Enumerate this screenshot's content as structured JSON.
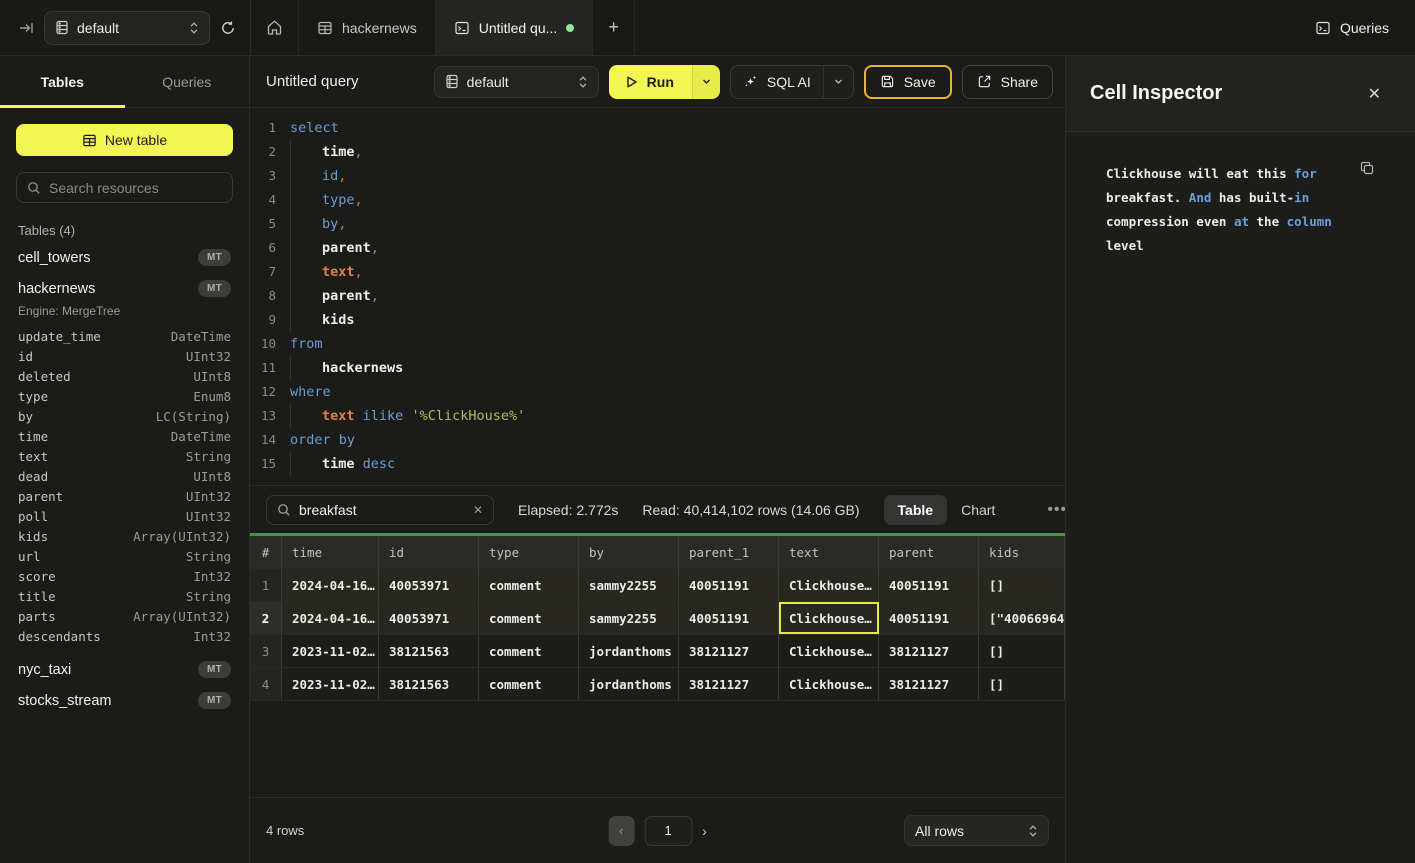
{
  "colors": {
    "accent_yellow": "#f3f553",
    "save_border_amber": "#eab330",
    "results_green": "#43953f",
    "tab_dot_green": "#8fe59b",
    "keyword_blue": "#6c9fd3",
    "comma_orange": "#d1794e",
    "string_olive": "#b4bd5e",
    "selected_cell_yellow": "#e6e94e"
  },
  "topbar": {
    "database_selector": "default",
    "tabs": [
      {
        "label": "",
        "icon": "home-icon",
        "active": false
      },
      {
        "label": "hackernews",
        "icon": "table-icon",
        "active": false
      },
      {
        "label": "Untitled qu...",
        "icon": "terminal-icon",
        "active": true,
        "unsaved_dot": true
      }
    ],
    "new_tab_label": "+",
    "queries_label": "Queries"
  },
  "sidebar": {
    "tabs": [
      {
        "label": "Tables",
        "active": true
      },
      {
        "label": "Queries",
        "active": false
      }
    ],
    "new_table_label": "New table",
    "search_placeholder": "Search resources",
    "section_label": "Tables (4)",
    "tables": [
      {
        "name": "cell_towers",
        "badge": "MT"
      },
      {
        "name": "hackernews",
        "badge": "MT",
        "engine": "Engine: MergeTree",
        "columns": [
          {
            "name": "update_time",
            "type": "DateTime"
          },
          {
            "name": "id",
            "type": "UInt32"
          },
          {
            "name": "deleted",
            "type": "UInt8"
          },
          {
            "name": "type",
            "type": "Enum8"
          },
          {
            "name": "by",
            "type": "LC(String)"
          },
          {
            "name": "time",
            "type": "DateTime"
          },
          {
            "name": "text",
            "type": "String"
          },
          {
            "name": "dead",
            "type": "UInt8"
          },
          {
            "name": "parent",
            "type": "UInt32"
          },
          {
            "name": "poll",
            "type": "UInt32"
          },
          {
            "name": "kids",
            "type": "Array(UInt32)"
          },
          {
            "name": "url",
            "type": "String"
          },
          {
            "name": "score",
            "type": "Int32"
          },
          {
            "name": "title",
            "type": "String"
          },
          {
            "name": "parts",
            "type": "Array(UInt32)"
          },
          {
            "name": "descendants",
            "type": "Int32"
          }
        ]
      },
      {
        "name": "nyc_taxi",
        "badge": "MT"
      },
      {
        "name": "stocks_stream",
        "badge": "MT"
      }
    ]
  },
  "main_header": {
    "title": "Untitled query",
    "database_selector": "default",
    "run_label": "Run",
    "sql_ai_label": "SQL AI",
    "save_label": "Save",
    "share_label": "Share"
  },
  "editor": {
    "lines": [
      {
        "n": 1,
        "tokens": [
          {
            "t": "kw",
            "v": "select"
          }
        ]
      },
      {
        "n": 2,
        "tokens": [
          {
            "t": "ind"
          },
          {
            "t": "id",
            "v": "time"
          },
          {
            "t": "comma",
            "v": ","
          }
        ]
      },
      {
        "n": 3,
        "tokens": [
          {
            "t": "ind"
          },
          {
            "t": "kw",
            "v": "id"
          },
          {
            "t": "comma",
            "v": ","
          }
        ]
      },
      {
        "n": 4,
        "tokens": [
          {
            "t": "ind"
          },
          {
            "t": "kw",
            "v": "type"
          },
          {
            "t": "comma",
            "v": ","
          }
        ]
      },
      {
        "n": 5,
        "tokens": [
          {
            "t": "ind"
          },
          {
            "t": "kw",
            "v": "by"
          },
          {
            "t": "comma",
            "v": ","
          }
        ]
      },
      {
        "n": 6,
        "tokens": [
          {
            "t": "ind"
          },
          {
            "t": "id",
            "v": "parent"
          },
          {
            "t": "comma",
            "v": ","
          }
        ]
      },
      {
        "n": 7,
        "tokens": [
          {
            "t": "ind"
          },
          {
            "t": "field",
            "v": "text"
          },
          {
            "t": "comma",
            "v": ","
          }
        ]
      },
      {
        "n": 8,
        "tokens": [
          {
            "t": "ind"
          },
          {
            "t": "id",
            "v": "parent"
          },
          {
            "t": "comma",
            "v": ","
          }
        ]
      },
      {
        "n": 9,
        "tokens": [
          {
            "t": "ind"
          },
          {
            "t": "id",
            "v": "kids"
          }
        ]
      },
      {
        "n": 10,
        "tokens": [
          {
            "t": "kw",
            "v": "from"
          }
        ]
      },
      {
        "n": 11,
        "tokens": [
          {
            "t": "ind"
          },
          {
            "t": "id",
            "v": "hackernews"
          }
        ]
      },
      {
        "n": 12,
        "tokens": [
          {
            "t": "kw",
            "v": "where"
          }
        ]
      },
      {
        "n": 13,
        "tokens": [
          {
            "t": "ind"
          },
          {
            "t": "field",
            "v": "text"
          },
          {
            "t": "plain",
            "v": " "
          },
          {
            "t": "kw",
            "v": "ilike"
          },
          {
            "t": "plain",
            "v": " "
          },
          {
            "t": "str",
            "v": "'%ClickHouse%'"
          }
        ]
      },
      {
        "n": 14,
        "tokens": [
          {
            "t": "kw",
            "v": "order by"
          }
        ]
      },
      {
        "n": 15,
        "tokens": [
          {
            "t": "ind"
          },
          {
            "t": "id",
            "v": "time"
          },
          {
            "t": "plain",
            "v": " "
          },
          {
            "t": "kw",
            "v": "desc"
          }
        ]
      }
    ]
  },
  "results": {
    "search_value": "breakfast",
    "elapsed": "Elapsed: 2.772s",
    "read": "Read: 40,414,102 rows (14.06 GB)",
    "view_toggle": [
      {
        "label": "Table",
        "active": true
      },
      {
        "label": "Chart",
        "active": false
      }
    ],
    "more_label": "...",
    "table": {
      "columns": [
        "#",
        "time",
        "id",
        "type",
        "by",
        "parent_1",
        "text",
        "parent",
        "kids"
      ],
      "rows": [
        {
          "num": "1",
          "cells": [
            "2024-04-16…",
            "40053971",
            "comment",
            "sammy2255",
            "40051191",
            "Clickhouse…",
            "40051191",
            "[]"
          ],
          "highlight": true
        },
        {
          "num": "2",
          "cells": [
            "2024-04-16…",
            "40053971",
            "comment",
            "sammy2255",
            "40051191",
            "Clickhouse…",
            "40051191",
            "[\"40066964…"
          ],
          "highlight": true,
          "selected": true
        },
        {
          "num": "3",
          "cells": [
            "2023-11-02…",
            "38121563",
            "comment",
            "jordanthoms",
            "38121127",
            "Clickhouse…",
            "38121127",
            "[]"
          ],
          "highlight": false
        },
        {
          "num": "4",
          "cells": [
            "2023-11-02…",
            "38121563",
            "comment",
            "jordanthoms",
            "38121127",
            "Clickhouse…",
            "38121127",
            "[]"
          ],
          "highlight": false
        }
      ],
      "selected_cell_column": "text"
    }
  },
  "bottombar": {
    "row_count": "4 rows",
    "page": "1",
    "prev_label": "‹",
    "next_label": "›",
    "page_size_selector": "All rows"
  },
  "inspector": {
    "title": "Cell Inspector",
    "segments": [
      {
        "t": "plain",
        "v": "Clickhouse will eat this "
      },
      {
        "t": "kw",
        "v": "for"
      },
      {
        "t": "plain",
        "v": " breakfast. "
      },
      {
        "t": "kw",
        "v": "And"
      },
      {
        "t": "plain",
        "v": " has built-"
      },
      {
        "t": "kw",
        "v": "in"
      },
      {
        "t": "plain",
        "v": " compression even "
      },
      {
        "t": "kw",
        "v": "at"
      },
      {
        "t": "plain",
        "v": " the "
      },
      {
        "t": "kw",
        "v": "column"
      },
      {
        "t": "plain",
        "v": " level"
      }
    ]
  }
}
